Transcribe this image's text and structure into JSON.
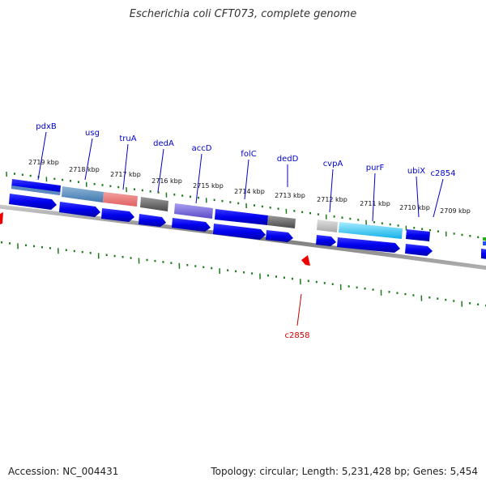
{
  "title": "Escherichia coli CFT073, complete genome",
  "footer": {
    "accession": "Accession: NC_004431",
    "summary": "Topology: circular; Length: 5,231,428 bp; Genes: 5,454"
  },
  "colors": {
    "gene_label": "#0000cc",
    "highlight_label": "#cc0000",
    "tick": "#1a7a1a",
    "backbone": "#888888",
    "arrow_blue": "#0000ee",
    "arrow_red": "#ee0000"
  },
  "kbp_ticks": [
    "2719 kbp",
    "2718 kbp",
    "2717 kbp",
    "2716 kbp",
    "2715 kbp",
    "2714 kbp",
    "2713 kbp",
    "2712 kbp",
    "2711 kbp",
    "2710 kbp",
    "2709 kbp"
  ],
  "gene_labels": [
    "pdxB",
    "usg",
    "truA",
    "dedA",
    "accD",
    "folC",
    "dedD",
    "cvpA",
    "purF",
    "ubiX",
    "c2854"
  ],
  "highlight_label": "c2858"
}
